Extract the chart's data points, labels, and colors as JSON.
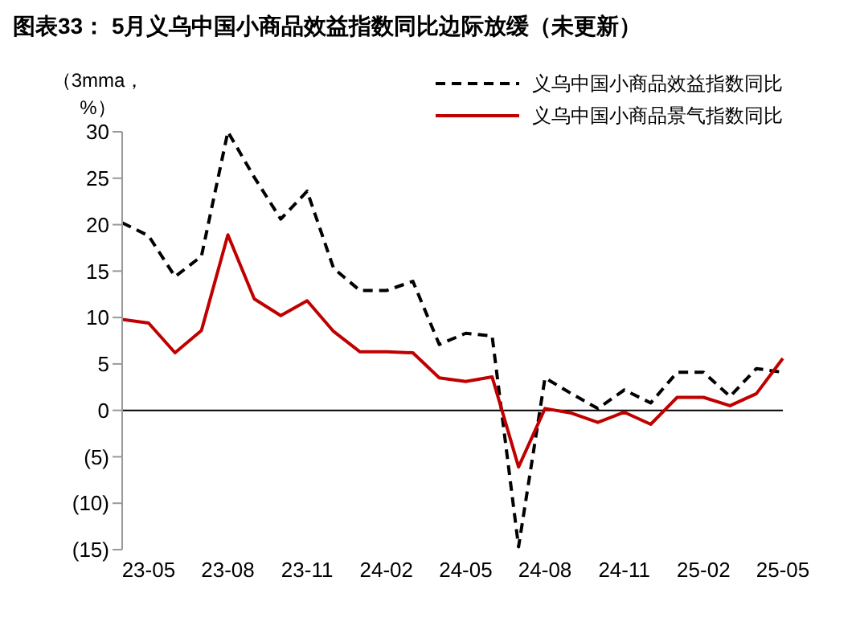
{
  "chart_data": {
    "type": "line",
    "title": "图表33： 5月义乌中国小商品效益指数同比边际放缓（未更新）",
    "ylabel": "（3mma，%）",
    "categories": [
      null,
      "23-05",
      null,
      null,
      "23-08",
      null,
      null,
      "23-11",
      null,
      null,
      "24-02",
      null,
      null,
      "24-05",
      null,
      null,
      "24-08",
      null,
      null,
      "24-11",
      null,
      null,
      "25-02",
      null,
      null,
      "25-05"
    ],
    "series": [
      {
        "name": "义乌中国小商品效益指数同比",
        "color": "#000000",
        "line_style": "dashed",
        "values": [
          20.2,
          18.8,
          14.4,
          16.6,
          30,
          25.1,
          20.6,
          23.6,
          15.3,
          12.9,
          12.9,
          13.9,
          7.1,
          8.3,
          8.0,
          -14.7,
          3.5,
          1.8,
          0.2,
          2.2,
          0.8,
          4.1,
          4.1,
          1.5,
          4.5,
          4.1
        ]
      },
      {
        "name": "义乌中国小商品景气指数同比",
        "color": "#c00000",
        "line_style": "solid",
        "values": [
          9.8,
          9.4,
          6.2,
          8.6,
          18.9,
          12.0,
          10.2,
          11.8,
          8.5,
          6.3,
          6.3,
          6.2,
          3.5,
          3.1,
          3.6,
          -6.1,
          0.2,
          -0.3,
          -1.3,
          -0.2,
          -1.5,
          1.4,
          1.4,
          0.5,
          1.8,
          5.6
        ]
      }
    ],
    "ylim": [
      -15,
      30
    ],
    "yticks": [
      {
        "value": -15,
        "label": "(15)"
      },
      {
        "value": -10,
        "label": "(10)"
      },
      {
        "value": -5,
        "label": "(5)"
      },
      0,
      5,
      10,
      15,
      20,
      25,
      30
    ],
    "ref_lines": [
      {
        "axis": "y",
        "value": 0,
        "color": "#000000"
      }
    ],
    "grid": false,
    "legend": "top right",
    "marker": "none"
  }
}
